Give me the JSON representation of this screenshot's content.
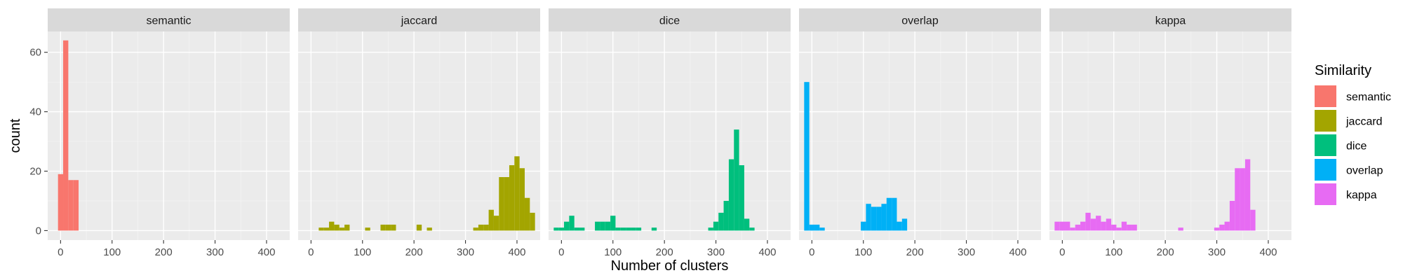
{
  "chart_data": {
    "type": "bar",
    "subtype": "faceted-histogram",
    "xlabel": "Number of clusters",
    "ylabel": "count",
    "xlim": [
      -25,
      445
    ],
    "ylim": [
      -3.2,
      67
    ],
    "xticks": [
      0,
      100,
      200,
      300,
      400
    ],
    "yticks": [
      0,
      20,
      40,
      60
    ],
    "bin_width": 10,
    "grid": true,
    "legend": {
      "title": "Similarity",
      "position": "right"
    },
    "facets": [
      {
        "name": "semantic",
        "color": "#F8766D",
        "bins": [
          [
            0,
            19
          ],
          [
            10,
            64
          ],
          [
            20,
            17
          ],
          [
            30,
            17
          ]
        ]
      },
      {
        "name": "jaccard",
        "color": "#A3A500",
        "bins": [
          [
            20,
            1
          ],
          [
            30,
            1
          ],
          [
            40,
            3
          ],
          [
            50,
            2
          ],
          [
            60,
            1
          ],
          [
            70,
            2
          ],
          [
            110,
            1
          ],
          [
            140,
            2
          ],
          [
            150,
            2
          ],
          [
            160,
            2
          ],
          [
            210,
            2
          ],
          [
            230,
            1
          ],
          [
            320,
            1
          ],
          [
            330,
            2
          ],
          [
            340,
            2
          ],
          [
            350,
            7
          ],
          [
            360,
            5
          ],
          [
            370,
            18
          ],
          [
            380,
            18
          ],
          [
            390,
            22
          ],
          [
            400,
            25
          ],
          [
            410,
            21
          ],
          [
            420,
            11
          ],
          [
            430,
            6
          ]
        ]
      },
      {
        "name": "dice",
        "color": "#00BF7D",
        "bins": [
          [
            -10,
            1
          ],
          [
            0,
            1
          ],
          [
            10,
            3
          ],
          [
            20,
            5
          ],
          [
            30,
            1
          ],
          [
            40,
            1
          ],
          [
            70,
            3
          ],
          [
            80,
            3
          ],
          [
            90,
            3
          ],
          [
            100,
            5
          ],
          [
            110,
            1
          ],
          [
            120,
            1
          ],
          [
            130,
            1
          ],
          [
            140,
            1
          ],
          [
            150,
            1
          ],
          [
            180,
            1
          ],
          [
            290,
            1
          ],
          [
            300,
            3
          ],
          [
            310,
            6
          ],
          [
            320,
            10
          ],
          [
            330,
            24
          ],
          [
            340,
            34
          ],
          [
            350,
            22
          ],
          [
            360,
            4
          ],
          [
            370,
            1
          ]
        ]
      },
      {
        "name": "overlap",
        "color": "#00B0F6",
        "bins": [
          [
            -10,
            50
          ],
          [
            0,
            2
          ],
          [
            10,
            2
          ],
          [
            20,
            1
          ],
          [
            100,
            3
          ],
          [
            110,
            9
          ],
          [
            120,
            8
          ],
          [
            130,
            8
          ],
          [
            140,
            9
          ],
          [
            150,
            11
          ],
          [
            160,
            11
          ],
          [
            170,
            3
          ],
          [
            180,
            4
          ]
        ]
      },
      {
        "name": "kappa",
        "color": "#E76BF3",
        "bins": [
          [
            -10,
            3
          ],
          [
            0,
            3
          ],
          [
            10,
            3
          ],
          [
            20,
            1
          ],
          [
            30,
            2
          ],
          [
            40,
            3
          ],
          [
            50,
            6
          ],
          [
            60,
            4
          ],
          [
            70,
            5
          ],
          [
            80,
            3
          ],
          [
            90,
            4
          ],
          [
            100,
            2
          ],
          [
            110,
            1
          ],
          [
            120,
            3
          ],
          [
            130,
            2
          ],
          [
            140,
            2
          ],
          [
            230,
            1
          ],
          [
            300,
            1
          ],
          [
            310,
            2
          ],
          [
            320,
            3
          ],
          [
            330,
            10
          ],
          [
            340,
            21
          ],
          [
            350,
            21
          ],
          [
            360,
            24
          ],
          [
            370,
            7
          ]
        ]
      }
    ]
  }
}
